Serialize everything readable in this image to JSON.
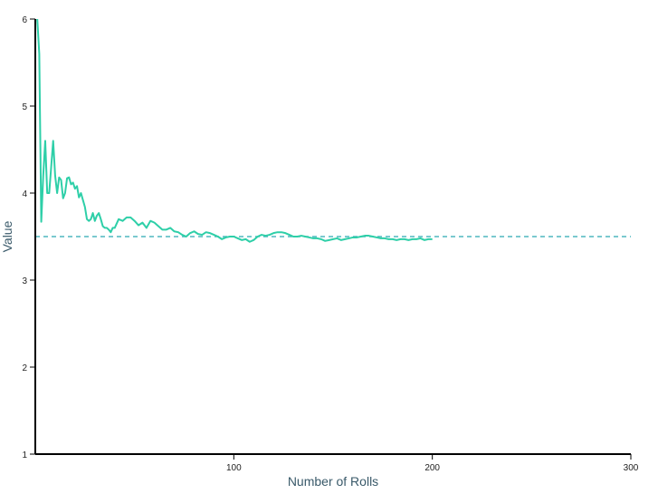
{
  "colors": {
    "series": "#2ecfa8",
    "reference": "#4fb7bf",
    "axis": "#000000"
  },
  "chart_data": {
    "type": "line",
    "title": "",
    "xlabel": "Number of Rolls",
    "ylabel": "Value",
    "xlim": [
      0,
      300
    ],
    "ylim": [
      1,
      6
    ],
    "xticks": [
      100,
      200,
      300
    ],
    "yticks": [
      1,
      2,
      3,
      4,
      5,
      6
    ],
    "grid": false,
    "reference_line": {
      "y": 3.5,
      "style": "dashed"
    },
    "series": [
      {
        "x": [
          1,
          2,
          3,
          4,
          5,
          6,
          7,
          8,
          9,
          10,
          11,
          12,
          13,
          14,
          15,
          16,
          17,
          18,
          19,
          20,
          21,
          22,
          23,
          24,
          25,
          26,
          27,
          28,
          29,
          30,
          31,
          32,
          33,
          34,
          35,
          36,
          37,
          38,
          39,
          40,
          42,
          44,
          46,
          48,
          50,
          52,
          54,
          56,
          58,
          60,
          62,
          64,
          66,
          68,
          70,
          72,
          74,
          76,
          78,
          80,
          82,
          84,
          86,
          88,
          90,
          92,
          94,
          96,
          98,
          100,
          102,
          104,
          106,
          108,
          110,
          112,
          114,
          116,
          118,
          120,
          122,
          124,
          126,
          128,
          130,
          132,
          134,
          136,
          138,
          140,
          142,
          144,
          146,
          148,
          150,
          152,
          154,
          156,
          158,
          160,
          162,
          164,
          166,
          168,
          170,
          172,
          174,
          176,
          178,
          180,
          182,
          184,
          186,
          188,
          190,
          192,
          194,
          196,
          198,
          200
        ],
        "y": [
          6.0,
          5.6,
          3.67,
          4.2,
          4.6,
          4.0,
          4.0,
          4.3,
          4.6,
          4.2,
          4.0,
          4.18,
          4.15,
          3.94,
          4.0,
          4.17,
          4.18,
          4.1,
          4.12,
          4.05,
          4.08,
          3.95,
          4.0,
          3.92,
          3.84,
          3.7,
          3.68,
          3.7,
          3.77,
          3.68,
          3.74,
          3.77,
          3.7,
          3.62,
          3.6,
          3.6,
          3.58,
          3.55,
          3.6,
          3.6,
          3.7,
          3.68,
          3.72,
          3.72,
          3.68,
          3.63,
          3.66,
          3.6,
          3.68,
          3.66,
          3.62,
          3.58,
          3.58,
          3.6,
          3.56,
          3.55,
          3.52,
          3.5,
          3.54,
          3.56,
          3.53,
          3.52,
          3.55,
          3.54,
          3.52,
          3.5,
          3.47,
          3.49,
          3.5,
          3.5,
          3.48,
          3.46,
          3.47,
          3.44,
          3.46,
          3.5,
          3.52,
          3.51,
          3.52,
          3.54,
          3.55,
          3.55,
          3.54,
          3.52,
          3.5,
          3.5,
          3.51,
          3.5,
          3.49,
          3.48,
          3.48,
          3.47,
          3.45,
          3.46,
          3.47,
          3.48,
          3.46,
          3.47,
          3.48,
          3.49,
          3.49,
          3.5,
          3.51,
          3.51,
          3.5,
          3.49,
          3.48,
          3.48,
          3.47,
          3.47,
          3.46,
          3.47,
          3.47,
          3.46,
          3.47,
          3.47,
          3.48,
          3.46,
          3.47,
          3.47
        ]
      }
    ]
  }
}
